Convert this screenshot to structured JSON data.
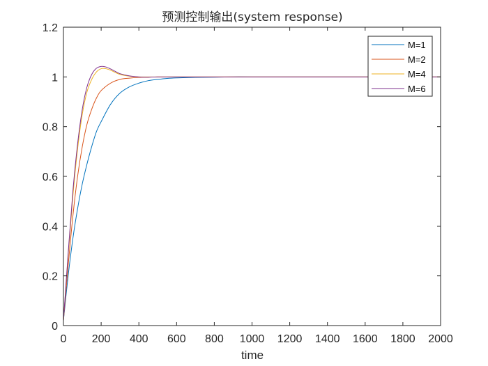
{
  "chart_data": {
    "type": "line",
    "title": "预测控制输出(system response)",
    "xlabel": "time",
    "ylabel": "",
    "xlim": [
      0,
      2000
    ],
    "ylim": [
      0,
      1.2
    ],
    "xticks": [
      0,
      200,
      400,
      600,
      800,
      1000,
      1200,
      1400,
      1600,
      1800,
      2000
    ],
    "yticks": [
      0,
      0.2,
      0.4,
      0.6,
      0.8,
      1,
      1.2
    ],
    "xtick_labels": [
      "0",
      "200",
      "400",
      "600",
      "800",
      "1000",
      "1200",
      "1400",
      "1600",
      "1800",
      "2000"
    ],
    "ytick_labels": [
      "0",
      "0.2",
      "0.4",
      "0.6",
      "0.8",
      "1",
      "1.2"
    ],
    "grid": false,
    "legend_position": "top-right",
    "series": [
      {
        "name": "M=1",
        "color": "#0072BD",
        "x": [
          0,
          25,
          50,
          75,
          100,
          125,
          150,
          175,
          200,
          250,
          300,
          350,
          400,
          450,
          500,
          550,
          600,
          700,
          800,
          900,
          1000,
          1200,
          1400,
          1600,
          1800,
          2000
        ],
        "y": [
          0.02,
          0.2,
          0.35,
          0.47,
          0.57,
          0.65,
          0.72,
          0.78,
          0.82,
          0.89,
          0.935,
          0.96,
          0.975,
          0.985,
          0.99,
          0.994,
          0.996,
          0.998,
          0.999,
          1.0,
          1.0,
          1.0,
          1.0,
          1.0,
          1.0,
          1.0
        ]
      },
      {
        "name": "M=2",
        "color": "#D95319",
        "x": [
          0,
          25,
          50,
          75,
          100,
          125,
          150,
          175,
          200,
          250,
          300,
          350,
          400,
          450,
          500,
          600,
          800,
          1000,
          1200,
          1400,
          1600,
          1800,
          2000
        ],
        "y": [
          0.02,
          0.24,
          0.44,
          0.6,
          0.72,
          0.81,
          0.87,
          0.915,
          0.945,
          0.975,
          0.99,
          0.995,
          0.998,
          0.999,
          1.0,
          1.0,
          1.0,
          1.0,
          1.0,
          1.0,
          1.0,
          1.0,
          1.0
        ]
      },
      {
        "name": "M=4",
        "color": "#EDB120",
        "x": [
          0,
          25,
          50,
          75,
          100,
          125,
          150,
          175,
          200,
          225,
          250,
          275,
          300,
          350,
          400,
          450,
          500,
          600,
          800,
          1000,
          1200,
          1400,
          1600,
          1800,
          2000
        ],
        "y": [
          0.02,
          0.28,
          0.52,
          0.71,
          0.85,
          0.94,
          0.99,
          1.02,
          1.033,
          1.033,
          1.027,
          1.018,
          1.01,
          1.003,
          1.0,
          1.0,
          1.0,
          1.0,
          1.0,
          1.0,
          1.0,
          1.0,
          1.0,
          1.0,
          1.0
        ]
      },
      {
        "name": "M=6",
        "color": "#7E2F8E",
        "x": [
          0,
          25,
          50,
          75,
          100,
          125,
          150,
          175,
          200,
          225,
          250,
          275,
          300,
          350,
          400,
          450,
          500,
          600,
          800,
          1000,
          1200,
          1400,
          1600,
          1800,
          2000
        ],
        "y": [
          0.02,
          0.29,
          0.54,
          0.73,
          0.87,
          0.96,
          1.01,
          1.035,
          1.042,
          1.04,
          1.032,
          1.022,
          1.013,
          1.004,
          1.0,
          0.999,
          1.0,
          1.0,
          1.0,
          1.0,
          1.0,
          1.0,
          1.0,
          1.0,
          1.0
        ]
      }
    ]
  }
}
